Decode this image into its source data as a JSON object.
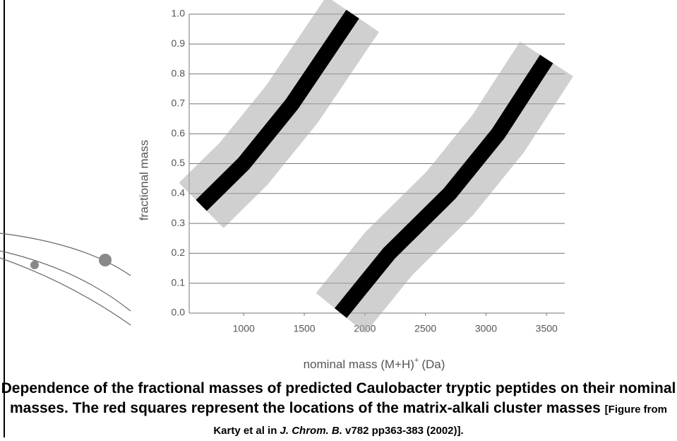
{
  "chart_data": {
    "type": "band-scatter",
    "xlabel": "nominal mass (M+H)",
    "xlabel_sup": "+",
    "xlabel_unit": "(Da)",
    "ylabel": "fractional mass",
    "xlim": [
      550,
      3650
    ],
    "xticks": [
      1000,
      1500,
      2000,
      2500,
      3000,
      3500
    ],
    "ylim": [
      0,
      1
    ],
    "yticks": [
      {
        "value": 0,
        "label": "0.0"
      },
      0.1,
      0.2,
      0.3,
      0.4,
      0.5,
      0.6,
      0.7,
      0.8,
      0.9,
      {
        "value": 1,
        "label": "1.0"
      }
    ],
    "grid": true,
    "series": [
      {
        "color": "#000000",
        "x": [
          650,
          1000,
          1400,
          1900
        ],
        "values": [
          0.36,
          0.5,
          0.7,
          1.0
        ]
      },
      {
        "color": "#000000",
        "x": [
          1800,
          2200,
          2700,
          3100,
          3500
        ],
        "values": [
          0.0,
          0.2,
          0.4,
          0.6,
          0.85
        ]
      }
    ]
  },
  "caption": {
    "main": "Dependence of the fractional masses of predicted Caulobacter tryptic peptides on their nominal masses. The red squares represent the locations of the matrix-alkali cluster masses",
    "source_pre": "[Figure from Karty et al in ",
    "source_journal": "J. Chrom. B.",
    "source_post": " v782 pp363-383 (2002)]."
  }
}
